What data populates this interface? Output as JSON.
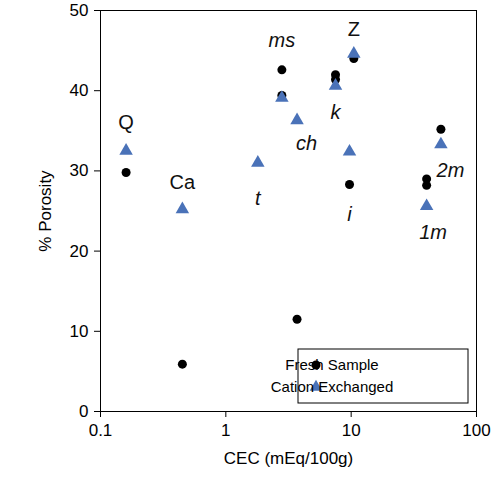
{
  "chart_data": {
    "type": "scatter",
    "x_label": "CEC (mEq/100g)",
    "y_label": "% Porosity",
    "log": "x",
    "xlim": [
      0.1,
      100
    ],
    "xticks": [
      0.1,
      1,
      10,
      100
    ],
    "ylim": [
      0,
      50
    ],
    "yticks": [
      0,
      10,
      20,
      30,
      40,
      50
    ],
    "grid": false,
    "legend": "lower right",
    "series": [
      {
        "name": "Fresh Sample",
        "color": "#000000",
        "marker": "circle",
        "x": [
          0.16,
          0.45,
          2.8,
          2.8,
          3.7,
          7.5,
          7.5,
          9.7,
          10.5,
          40,
          40,
          52
        ],
        "y": [
          29.8,
          5.9,
          42.6,
          39.4,
          11.5,
          42.0,
          41.4,
          28.3,
          44.0,
          29.0,
          28.2,
          35.2
        ]
      },
      {
        "name": "Cation Exchanged",
        "color": "#4a72b8",
        "marker": "triangle",
        "x": [
          0.16,
          0.45,
          1.8,
          2.8,
          3.7,
          7.5,
          9.7,
          10.5,
          40,
          52
        ],
        "y": [
          32.5,
          25.2,
          31.0,
          39.1,
          36.3,
          40.6,
          32.4,
          44.6,
          25.6,
          33.3
        ]
      }
    ],
    "annotations": [
      {
        "text": "Q",
        "x": 0.16,
        "y": 36
      },
      {
        "text": "Ca",
        "x": 0.45,
        "y": 28.6
      },
      {
        "text": "t",
        "x": 1.8,
        "y": 26.6
      },
      {
        "text": "ms",
        "x": 2.8,
        "y": 46.2
      },
      {
        "text": "ch",
        "x": 4.4,
        "y": 33.4
      },
      {
        "text": "k",
        "x": 7.5,
        "y": 37.3
      },
      {
        "text": "i",
        "x": 9.7,
        "y": 24.5
      },
      {
        "text": "Z",
        "x": 10.5,
        "y": 47.6
      },
      {
        "text": "1m",
        "x": 45,
        "y": 22.3
      },
      {
        "text": "2m",
        "x": 62,
        "y": 30
      }
    ]
  }
}
